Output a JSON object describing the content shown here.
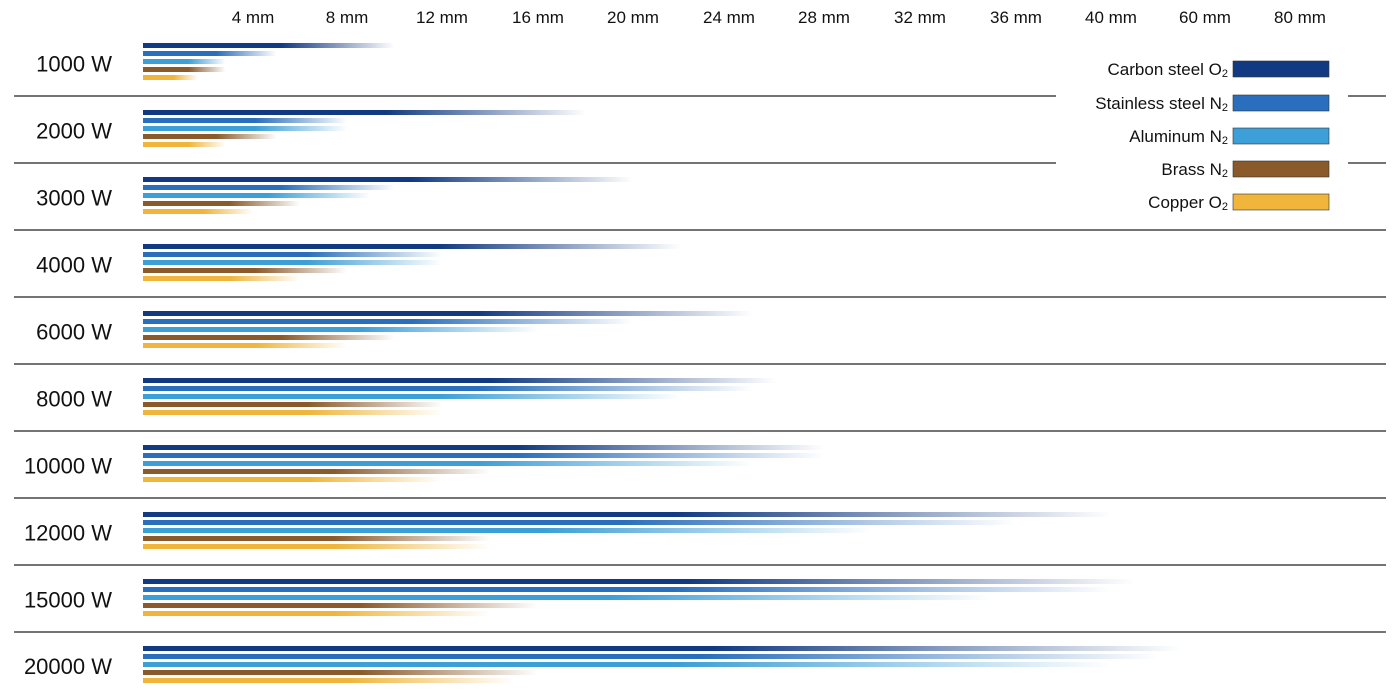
{
  "chart_data": {
    "type": "bar",
    "title": "",
    "xlabel": "",
    "ylabel": "",
    "x_ticks": [
      "4 mm",
      "8 mm",
      "12 mm",
      "16 mm",
      "20 mm",
      "24 mm",
      "28 mm",
      "32 mm",
      "36 mm",
      "40 mm",
      "60 mm",
      "80 mm"
    ],
    "tick_values_mm": [
      4,
      8,
      12,
      16,
      20,
      24,
      28,
      32,
      36,
      40,
      60,
      80
    ],
    "categories": [
      "1000 W",
      "2000 W",
      "3000 W",
      "4000 W",
      "6000 W",
      "8000 W",
      "10000 W",
      "12000 W",
      "15000 W",
      "20000 W"
    ],
    "series": [
      {
        "name": "Carbon steel",
        "gas": "O",
        "gas_sub": "2",
        "color": "#123a82",
        "values": [
          10,
          18,
          20,
          22,
          25,
          26,
          28,
          40,
          45,
          55
        ]
      },
      {
        "name": "Stainless steel",
        "gas": "N",
        "gas_sub": "2",
        "color": "#2a6fbd",
        "values": [
          5,
          8,
          10,
          12,
          20,
          25,
          28,
          36,
          40,
          50
        ]
      },
      {
        "name": "Aluminum",
        "gas": "N",
        "gas_sub": "2",
        "color": "#3d9fd8",
        "values": [
          3,
          8,
          9,
          12,
          16,
          22,
          25,
          30,
          35,
          40
        ]
      },
      {
        "name": "Brass",
        "gas": "N",
        "gas_sub": "2",
        "color": "#8b5a2b",
        "values": [
          3,
          5,
          6,
          8,
          10,
          12,
          14,
          14,
          16,
          16
        ]
      },
      {
        "name": "Copper",
        "gas": "O",
        "gas_sub": "2",
        "color": "#f0b53a",
        "values": [
          2,
          3,
          4,
          6,
          8,
          12,
          12,
          14,
          14,
          15
        ]
      }
    ],
    "legend": "top-right",
    "grid": false
  }
}
